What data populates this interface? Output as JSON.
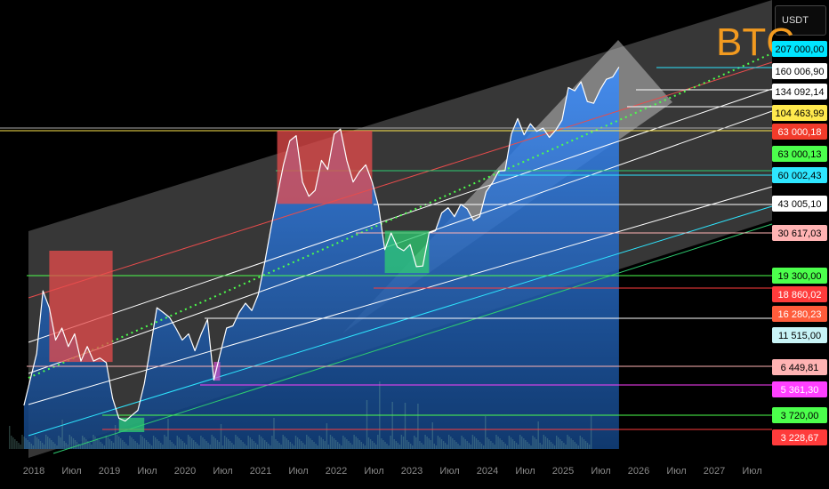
{
  "ticker": "BTC",
  "currency_button": "USDT",
  "chart_data": {
    "type": "line",
    "title": "BTC",
    "x_tick_labels": [
      "2018",
      "Июл",
      "2019",
      "Июл",
      "2020",
      "Июл",
      "2021",
      "Июл",
      "2022",
      "Июл",
      "2023",
      "Июл",
      "2024",
      "Июл",
      "2025",
      "Июл",
      "2026",
      "Июл",
      "2027",
      "Июл"
    ],
    "price_labels": [
      {
        "text": "207 000,00",
        "bg": "#00e5ff",
        "fg": "#000000"
      },
      {
        "text": "160 006,90",
        "bg": "#ffffff",
        "fg": "#000000"
      },
      {
        "text": "134 092,14",
        "bg": "#ffffff",
        "fg": "#000000"
      },
      {
        "text": "104 463,99",
        "bg": "#ffe94d",
        "fg": "#000000"
      },
      {
        "text": "63 000,18",
        "bg": "#f23b2b",
        "fg": "#ffffff"
      },
      {
        "text": "63 000,13",
        "bg": "#4cff4c",
        "fg": "#000000"
      },
      {
        "text": "60 002,43",
        "bg": "#2ee6ff",
        "fg": "#000000"
      },
      {
        "text": "43 005,10",
        "bg": "#ffffff",
        "fg": "#000000"
      },
      {
        "text": "30 617,03",
        "bg": "#ffb3b3",
        "fg": "#000000"
      },
      {
        "text": "19 300,00",
        "bg": "#4cff4c",
        "fg": "#000000"
      },
      {
        "text": "18 860,02",
        "bg": "#ff3b3b",
        "fg": "#ffffff"
      },
      {
        "text": "16 280,23",
        "bg": "#ff5c3b",
        "fg": "#ffffff"
      },
      {
        "text": "11 515,00",
        "bg": "#c8f4f7",
        "fg": "#000000"
      },
      {
        "text": "6 449,81",
        "bg": "#ffb3b3",
        "fg": "#000000"
      },
      {
        "text": "5 361,30",
        "bg": "#ff40ff",
        "fg": "#ffffff"
      },
      {
        "text": "3 720,00",
        "bg": "#4cff4c",
        "fg": "#000000"
      },
      {
        "text": "3 228,67",
        "bg": "#ff3b3b",
        "fg": "#ffffff"
      }
    ],
    "series": [
      {
        "values": [
          [
            "2017-09",
            4200
          ],
          [
            "2017-11",
            7000
          ],
          [
            "2017-12",
            13000
          ],
          [
            "2018-01",
            11000
          ],
          [
            "2018-02",
            8000
          ],
          [
            "2018-03",
            9000
          ],
          [
            "2018-04",
            7500
          ],
          [
            "2018-05",
            8500
          ],
          [
            "2018-06",
            6500
          ],
          [
            "2018-07",
            7500
          ],
          [
            "2018-08",
            6500
          ],
          [
            "2018-09",
            6700
          ],
          [
            "2018-10",
            6400
          ],
          [
            "2018-11",
            4500
          ],
          [
            "2018-12",
            3700
          ],
          [
            "2019-01",
            3600
          ],
          [
            "2019-02",
            3800
          ],
          [
            "2019-03",
            4000
          ],
          [
            "2019-04",
            5200
          ],
          [
            "2019-05",
            7500
          ],
          [
            "2019-06",
            11000
          ],
          [
            "2019-07",
            10500
          ],
          [
            "2019-08",
            10000
          ],
          [
            "2019-09",
            9000
          ],
          [
            "2019-10",
            8000
          ],
          [
            "2019-11",
            8500
          ],
          [
            "2019-12",
            7200
          ],
          [
            "2020-01",
            8500
          ],
          [
            "2020-02",
            9800
          ],
          [
            "2020-03",
            5400
          ],
          [
            "2020-04",
            7000
          ],
          [
            "2020-05",
            9000
          ],
          [
            "2020-06",
            9200
          ],
          [
            "2020-07",
            10500
          ],
          [
            "2020-08",
            11500
          ],
          [
            "2020-09",
            10700
          ],
          [
            "2020-10",
            12500
          ],
          [
            "2020-11",
            17000
          ],
          [
            "2020-12",
            24000
          ],
          [
            "2021-01",
            33000
          ],
          [
            "2021-02",
            45000
          ],
          [
            "2021-03",
            57000
          ],
          [
            "2021-04",
            60000
          ],
          [
            "2021-05",
            38000
          ],
          [
            "2021-06",
            33000
          ],
          [
            "2021-07",
            35000
          ],
          [
            "2021-08",
            47000
          ],
          [
            "2021-09",
            43000
          ],
          [
            "2021-10",
            61000
          ],
          [
            "2021-11",
            64000
          ],
          [
            "2021-12",
            47000
          ],
          [
            "2022-01",
            38000
          ],
          [
            "2022-02",
            42000
          ],
          [
            "2022-03",
            45000
          ],
          [
            "2022-04",
            38000
          ],
          [
            "2022-05",
            30000
          ],
          [
            "2022-06",
            19500
          ],
          [
            "2022-07",
            23000
          ],
          [
            "2022-08",
            20000
          ],
          [
            "2022-09",
            19300
          ],
          [
            "2022-10",
            20500
          ],
          [
            "2022-11",
            16500
          ],
          [
            "2022-12",
            16600
          ],
          [
            "2023-01",
            23000
          ],
          [
            "2023-02",
            23500
          ],
          [
            "2023-03",
            28000
          ],
          [
            "2023-04",
            29500
          ],
          [
            "2023-05",
            27000
          ],
          [
            "2023-06",
            30500
          ],
          [
            "2023-07",
            29200
          ],
          [
            "2023-08",
            26000
          ],
          [
            "2023-09",
            27000
          ],
          [
            "2023-10",
            34500
          ],
          [
            "2023-11",
            37700
          ],
          [
            "2023-12",
            42300
          ],
          [
            "2024-01",
            42500
          ],
          [
            "2024-02",
            61000
          ],
          [
            "2024-03",
            71000
          ],
          [
            "2024-04",
            60500
          ],
          [
            "2024-05",
            67500
          ],
          [
            "2024-06",
            62600
          ],
          [
            "2024-07",
            64600
          ],
          [
            "2024-08",
            59000
          ],
          [
            "2024-09",
            63300
          ],
          [
            "2024-10",
            70000
          ],
          [
            "2024-11",
            96400
          ],
          [
            "2024-12",
            93400
          ],
          [
            "2025-01",
            102000
          ],
          [
            "2025-02",
            84000
          ],
          [
            "2025-03",
            82500
          ],
          [
            "2025-04",
            94200
          ],
          [
            "2025-05",
            104600
          ],
          [
            "2025-06",
            107000
          ],
          [
            "2025-07",
            118000
          ]
        ]
      }
    ],
    "boxes": [
      {
        "color": "#e84c4c",
        "x0": "2018-01",
        "x1": "2018-11",
        "y0": 6449,
        "y1": 19300
      },
      {
        "color": "#2ecc71",
        "x0": "2018-12",
        "x1": "2019-04",
        "y0": 3228,
        "y1": 3720
      },
      {
        "color": "#cc55cc",
        "x0": "2020-03",
        "x1": "2020-04",
        "y0": 5361,
        "y1": 6449
      },
      {
        "color": "#e84c4c",
        "x0": "2021-01",
        "x1": "2022-04",
        "y0": 30617,
        "y1": 63000
      },
      {
        "color": "#2ecc71",
        "x0": "2022-06",
        "x1": "2023-01",
        "y0": 15480,
        "y1": 23500
      }
    ]
  }
}
